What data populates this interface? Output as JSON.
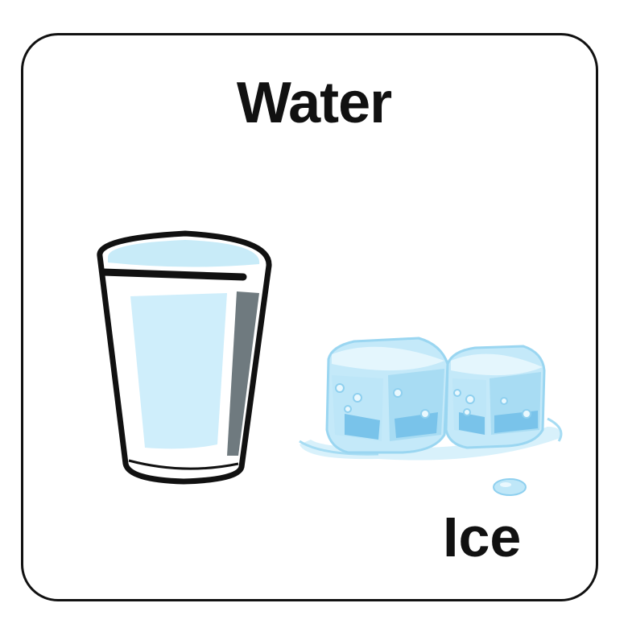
{
  "title": "Water",
  "label": "Ice",
  "icons": {
    "glass": "water-glass-icon",
    "ice": "ice-cubes-icon"
  },
  "colors": {
    "border": "#111111",
    "water": "#cfeefb",
    "ice": "#bfe7f8",
    "ice_shadow": "#7cc6ec"
  }
}
